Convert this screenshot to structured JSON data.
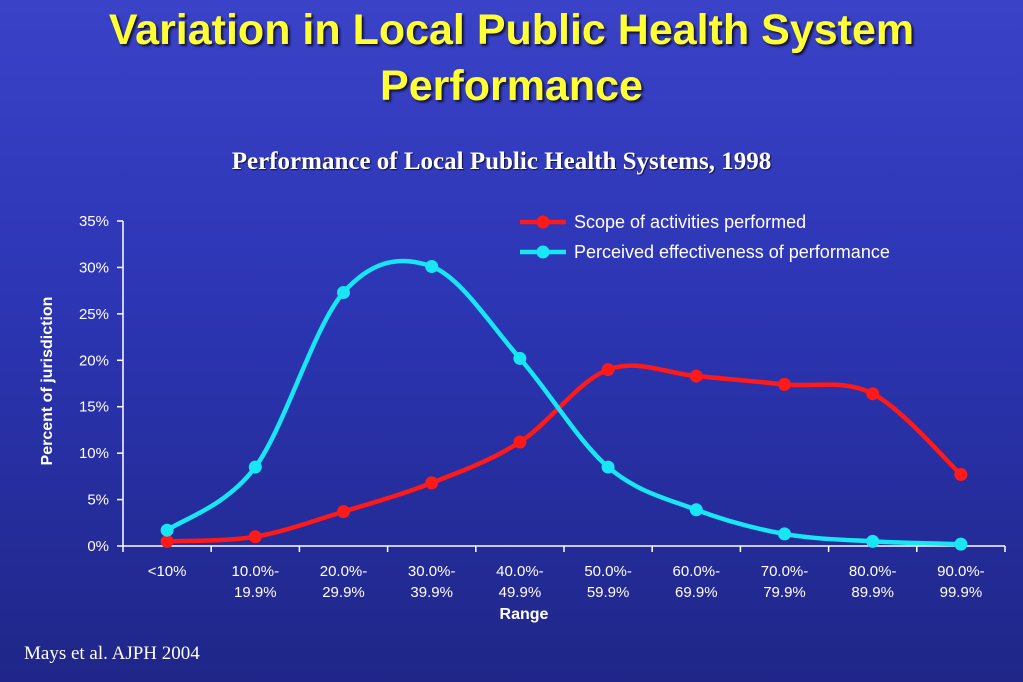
{
  "slide": {
    "title_line1": "Variation in Local Public Health System",
    "title_line2": "Performance",
    "citation": "Mays et al.  AJPH 2004"
  },
  "chart_data": {
    "type": "line",
    "title": "Performance of Local Public Health Systems, 1998",
    "xlabel": "Range",
    "ylabel": "Percent of jurisdiction",
    "categories": [
      [
        "<10%"
      ],
      [
        "10.0%-",
        "19.9%"
      ],
      [
        "20.0%-",
        "29.9%"
      ],
      [
        "30.0%-",
        "39.9%"
      ],
      [
        "40.0%-",
        "49.9%"
      ],
      [
        "50.0%-",
        "59.9%"
      ],
      [
        "60.0%-",
        "69.9%"
      ],
      [
        "70.0%-",
        "79.9%"
      ],
      [
        "80.0%-",
        "89.9%"
      ],
      [
        "90.0%-",
        "99.9%"
      ]
    ],
    "y_ticks": [
      "0%",
      "5%",
      "10%",
      "15%",
      "20%",
      "25%",
      "30%",
      "35%"
    ],
    "ylim": [
      0,
      35
    ],
    "legend_position": "top-right",
    "grid": false,
    "series": [
      {
        "name": "Scope of activities performed",
        "color": "#ff1a1a",
        "values": [
          0.5,
          1.0,
          3.7,
          6.8,
          11.2,
          19.0,
          18.3,
          17.4,
          16.4,
          7.7
        ]
      },
      {
        "name": "Perceived effectiveness of performance",
        "color": "#19e6f5",
        "values": [
          1.7,
          8.5,
          27.3,
          30.1,
          20.2,
          8.5,
          3.9,
          1.3,
          0.5,
          0.2
        ]
      }
    ]
  }
}
